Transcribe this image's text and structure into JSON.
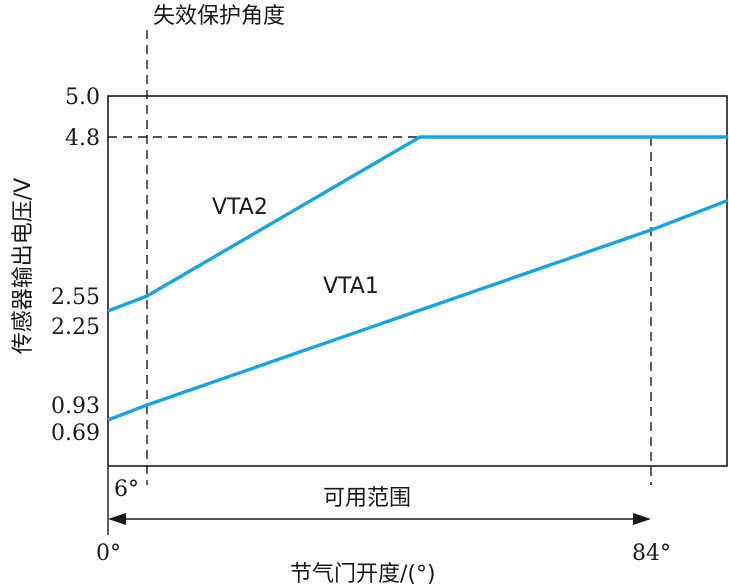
{
  "chart_data": {
    "type": "line",
    "title": "",
    "xlabel": "节气门开度/(°)",
    "ylabel": "传感器输出电压/V",
    "xlim": [
      0,
      84
    ],
    "ylim": [
      0,
      5.0
    ],
    "y_ticks": [
      "5.0",
      "4.8",
      "2.55",
      "2.25",
      "0.93",
      "0.69"
    ],
    "y_tick_values": [
      5.0,
      4.8,
      2.55,
      2.25,
      0.93,
      0.69
    ],
    "x_ticks": [
      {
        "value": 0,
        "label": "0°"
      },
      {
        "value": 6,
        "label": "6°"
      },
      {
        "value": 84,
        "label": "84°"
      }
    ],
    "series": [
      {
        "name": "VTA1",
        "x": [
          0,
          6,
          84,
          84
        ],
        "y": [
          0.69,
          0.93,
          3.5,
          3.9
        ],
        "color": "#1aa3dc"
      },
      {
        "name": "VTA2",
        "x": [
          0,
          6,
          48,
          84
        ],
        "y": [
          2.25,
          2.55,
          4.8,
          4.8
        ],
        "color": "#1aa3dc"
      }
    ],
    "annotations": {
      "fail_safe_label": "失效保护角度",
      "fail_safe_angle": 6,
      "usable_range_label": "可用范围",
      "usable_range": [
        0,
        84
      ],
      "reference_level": 4.8
    },
    "grid": false,
    "legend": "none"
  }
}
